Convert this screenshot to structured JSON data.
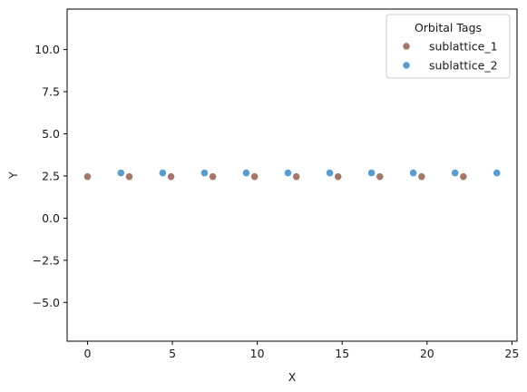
{
  "chart_data": {
    "type": "scatter",
    "title": "",
    "xlabel": "X",
    "ylabel": "Y",
    "xlim": [
      -1.2,
      25.3
    ],
    "ylim": [
      -7.3,
      12.4
    ],
    "xticks": [
      "0",
      "5",
      "10",
      "15",
      "20",
      "25"
    ],
    "yticks": [
      "−5.0",
      "−2.5",
      "0.0",
      "2.5",
      "5.0",
      "7.5",
      "10.0"
    ],
    "grid": false,
    "legend": {
      "title": "Orbital Tags",
      "placement": "top-right"
    },
    "series": [
      {
        "name": "sublattice_1",
        "color": "#a5776a",
        "points": [
          [
            0.0,
            2.46
          ],
          [
            2.46,
            2.46
          ],
          [
            4.92,
            2.46
          ],
          [
            7.38,
            2.46
          ],
          [
            9.84,
            2.46
          ],
          [
            12.3,
            2.46
          ],
          [
            14.76,
            2.46
          ],
          [
            17.22,
            2.46
          ],
          [
            19.68,
            2.46
          ],
          [
            22.14,
            2.46
          ]
        ]
      },
      {
        "name": "sublattice_2",
        "color": "#5b9ccf",
        "points": [
          [
            1.97,
            2.68
          ],
          [
            4.43,
            2.68
          ],
          [
            6.89,
            2.68
          ],
          [
            9.35,
            2.68
          ],
          [
            11.81,
            2.68
          ],
          [
            14.27,
            2.68
          ],
          [
            16.73,
            2.68
          ],
          [
            19.19,
            2.68
          ],
          [
            21.65,
            2.68
          ],
          [
            24.11,
            2.68
          ]
        ]
      }
    ]
  }
}
